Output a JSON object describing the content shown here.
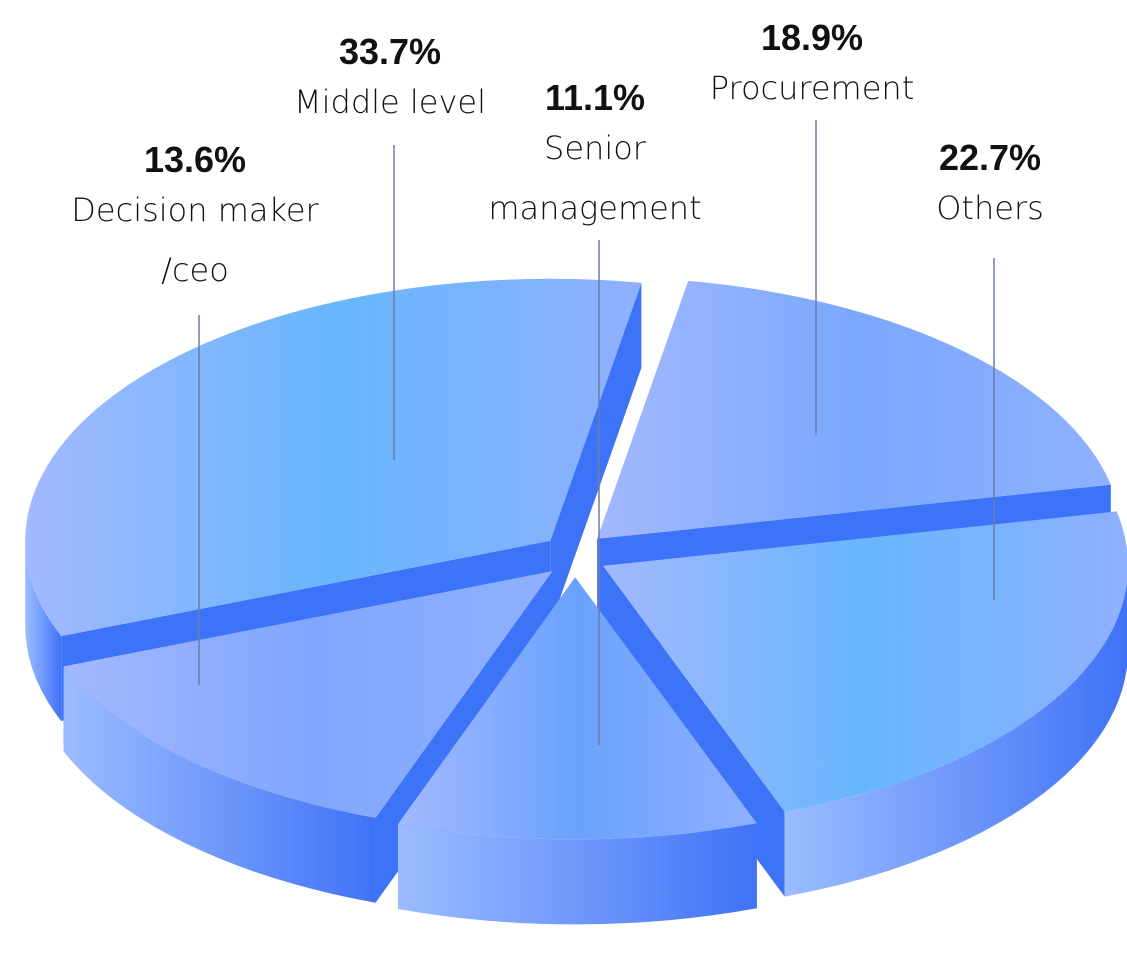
{
  "chart_data": {
    "type": "pie",
    "categories": [
      "Decision maker /ceo",
      "Middle level",
      "Senior management",
      "Procurement",
      "Others"
    ],
    "values": [
      13.6,
      33.7,
      11.1,
      18.9,
      22.7
    ],
    "value_labels": [
      "13.6%",
      "33.7%",
      "11.1%",
      "18.9%",
      "22.7%"
    ],
    "colors": [
      "#80a6fc",
      "#67b6fc",
      "#6aa2fc",
      "#7aa8fc",
      "#67b6fc"
    ]
  }
}
